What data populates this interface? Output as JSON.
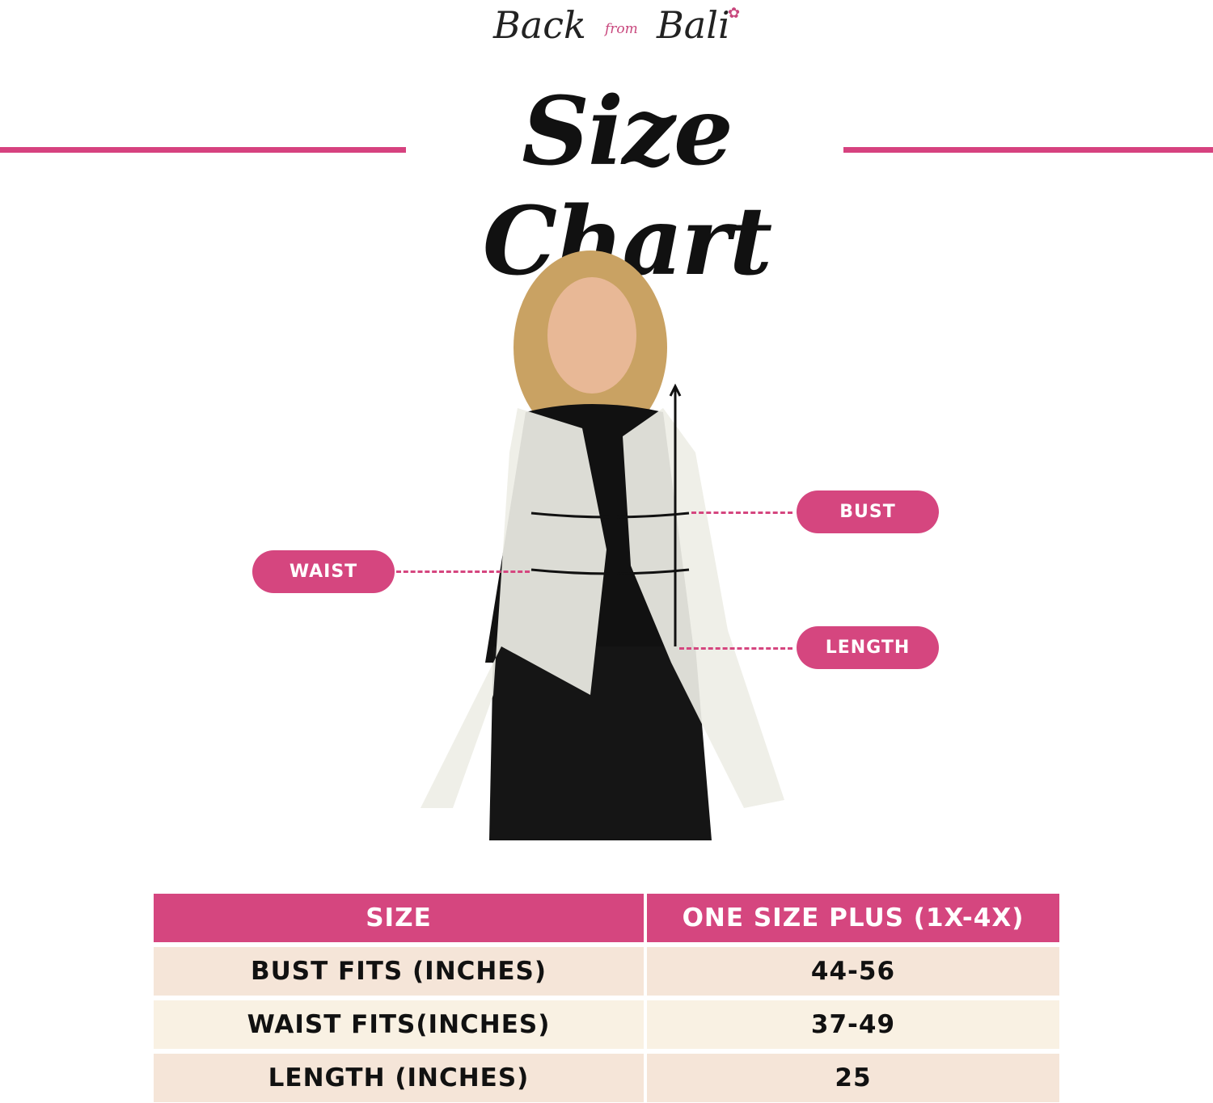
{
  "logo": {
    "text_main_1": "Back",
    "text_from": "from",
    "text_main_2": "Bali"
  },
  "title": "Size Chart",
  "labels": {
    "bust": "BUST",
    "waist": "WAIST",
    "length": "LENGTH"
  },
  "table": {
    "headers": [
      "SIZE",
      "ONE SIZE PLUS (1X-4X)"
    ],
    "rows": [
      [
        "BUST FITS (INCHES)",
        "44-56"
      ],
      [
        "WAIST FITS(INCHES)",
        "37-49"
      ],
      [
        "LENGTH (INCHES)",
        "25"
      ]
    ]
  },
  "colors": {
    "accent": "#d5467f",
    "row_light": "#f9f1e3",
    "row_dark": "#f5e5d8"
  }
}
